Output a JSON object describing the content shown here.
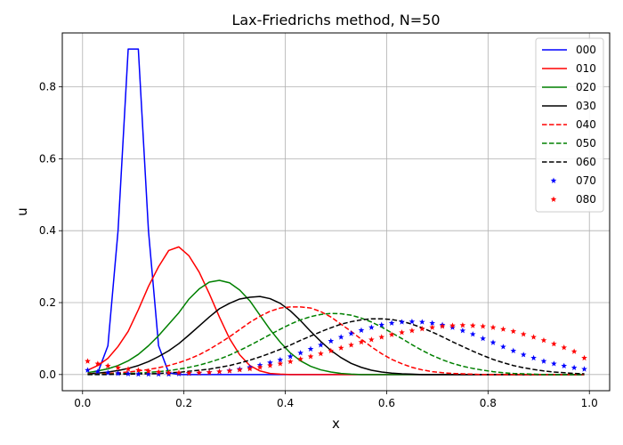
{
  "chart_data": {
    "type": "line",
    "title": "Lax-Friedrichs method, N=50",
    "xlabel": "x",
    "ylabel": "u",
    "xlim": [
      -0.04,
      1.04
    ],
    "ylim": [
      -0.045,
      0.95
    ],
    "x_ticks": [
      0.0,
      0.2,
      0.4,
      0.6,
      0.8,
      1.0
    ],
    "x_tick_labels": [
      "0.0",
      "0.2",
      "0.4",
      "0.6",
      "0.8",
      "1.0"
    ],
    "y_ticks": [
      0.0,
      0.2,
      0.4,
      0.6,
      0.8
    ],
    "y_tick_labels": [
      "0.0",
      "0.2",
      "0.4",
      "0.6",
      "0.8"
    ],
    "grid": true,
    "legend_position": "top-right",
    "x": [
      0.01,
      0.03,
      0.05,
      0.07,
      0.09,
      0.11,
      0.13,
      0.15,
      0.17,
      0.19,
      0.21,
      0.23,
      0.25,
      0.27,
      0.29,
      0.31,
      0.33,
      0.35,
      0.37,
      0.39,
      0.41,
      0.43,
      0.45,
      0.47,
      0.49,
      0.51,
      0.53,
      0.55,
      0.57,
      0.59,
      0.61,
      0.63,
      0.65,
      0.67,
      0.69,
      0.71,
      0.73,
      0.75,
      0.77,
      0.79,
      0.81,
      0.83,
      0.85,
      0.87,
      0.89,
      0.91,
      0.93,
      0.95,
      0.97,
      0.99
    ],
    "series": [
      {
        "name": "000",
        "color": "#0000ff",
        "style": "solid",
        "values": [
          0.0,
          0.005,
          0.08,
          0.4,
          0.905,
          0.905,
          0.4,
          0.08,
          0.005,
          0,
          0,
          0,
          0,
          0,
          0,
          0,
          0,
          0,
          0,
          0,
          0,
          0,
          0,
          0,
          0,
          0,
          0,
          0,
          0,
          0,
          0,
          0,
          0,
          0,
          0,
          0,
          0,
          0,
          0,
          0,
          0,
          0,
          0,
          0,
          0,
          0,
          0,
          0,
          0,
          0
        ]
      },
      {
        "name": "010",
        "color": "#ff0000",
        "style": "solid",
        "values": [
          0.012,
          0.025,
          0.045,
          0.078,
          0.12,
          0.18,
          0.245,
          0.3,
          0.345,
          0.355,
          0.33,
          0.285,
          0.225,
          0.16,
          0.1,
          0.055,
          0.025,
          0.01,
          0.003,
          0.001,
          0,
          0,
          0,
          0,
          0,
          0,
          0,
          0,
          0,
          0,
          0,
          0,
          0,
          0,
          0,
          0,
          0,
          0,
          0,
          0,
          0,
          0,
          0,
          0,
          0,
          0,
          0,
          0,
          0,
          0
        ]
      },
      {
        "name": "020",
        "color": "#008000",
        "style": "solid",
        "values": [
          0.005,
          0.01,
          0.016,
          0.025,
          0.038,
          0.056,
          0.08,
          0.108,
          0.14,
          0.172,
          0.21,
          0.238,
          0.257,
          0.262,
          0.255,
          0.235,
          0.205,
          0.165,
          0.125,
          0.09,
          0.06,
          0.038,
          0.023,
          0.013,
          0.007,
          0.003,
          0.001,
          0,
          0,
          0,
          0,
          0,
          0,
          0,
          0,
          0,
          0,
          0,
          0,
          0,
          0,
          0,
          0,
          0,
          0,
          0,
          0,
          0,
          0,
          0
        ]
      },
      {
        "name": "030",
        "color": "#000000",
        "style": "solid",
        "values": [
          0.002,
          0.004,
          0.007,
          0.011,
          0.017,
          0.025,
          0.036,
          0.05,
          0.066,
          0.086,
          0.11,
          0.135,
          0.16,
          0.183,
          0.198,
          0.21,
          0.215,
          0.217,
          0.211,
          0.198,
          0.177,
          0.15,
          0.12,
          0.092,
          0.067,
          0.047,
          0.031,
          0.02,
          0.012,
          0.007,
          0.004,
          0.002,
          0.001,
          0,
          0,
          0,
          0,
          0,
          0,
          0,
          0,
          0,
          0,
          0,
          0,
          0,
          0,
          0,
          0,
          0
        ]
      },
      {
        "name": "040",
        "color": "#ff0000",
        "style": "dashed",
        "values": [
          0.001,
          0.002,
          0.003,
          0.005,
          0.007,
          0.01,
          0.014,
          0.019,
          0.025,
          0.033,
          0.043,
          0.055,
          0.07,
          0.087,
          0.105,
          0.125,
          0.145,
          0.162,
          0.176,
          0.185,
          0.188,
          0.188,
          0.185,
          0.175,
          0.16,
          0.14,
          0.12,
          0.098,
          0.077,
          0.058,
          0.042,
          0.03,
          0.02,
          0.013,
          0.008,
          0.005,
          0.003,
          0.002,
          0.001,
          0,
          0,
          0,
          0,
          0,
          0,
          0,
          0,
          0,
          0,
          0
        ]
      },
      {
        "name": "050",
        "color": "#008000",
        "style": "dashed",
        "values": [
          0,
          0.001,
          0.001,
          0.002,
          0.003,
          0.004,
          0.006,
          0.008,
          0.011,
          0.015,
          0.02,
          0.026,
          0.034,
          0.043,
          0.054,
          0.067,
          0.081,
          0.096,
          0.111,
          0.126,
          0.14,
          0.152,
          0.161,
          0.167,
          0.17,
          0.169,
          0.165,
          0.157,
          0.146,
          0.132,
          0.116,
          0.1,
          0.083,
          0.067,
          0.053,
          0.041,
          0.031,
          0.023,
          0.017,
          0.012,
          0.008,
          0.005,
          0.003,
          0.002,
          0.001,
          0,
          0,
          0,
          0,
          0
        ]
      },
      {
        "name": "060",
        "color": "#000000",
        "style": "dashed",
        "values": [
          0,
          0,
          0,
          0.001,
          0.001,
          0.002,
          0.002,
          0.003,
          0.005,
          0.006,
          0.009,
          0.012,
          0.015,
          0.02,
          0.025,
          0.032,
          0.04,
          0.049,
          0.059,
          0.07,
          0.082,
          0.095,
          0.107,
          0.119,
          0.13,
          0.14,
          0.147,
          0.152,
          0.155,
          0.155,
          0.153,
          0.148,
          0.14,
          0.13,
          0.118,
          0.105,
          0.091,
          0.078,
          0.065,
          0.053,
          0.042,
          0.033,
          0.025,
          0.019,
          0.014,
          0.01,
          0.007,
          0.005,
          0.003,
          0.002
        ]
      },
      {
        "name": "070",
        "color": "#0000ff",
        "style": "star",
        "values": [
          0.012,
          0.008,
          0.005,
          0.003,
          0.002,
          0.001,
          0.001,
          0.001,
          0.001,
          0.002,
          0.003,
          0.004,
          0.006,
          0.008,
          0.011,
          0.015,
          0.02,
          0.026,
          0.033,
          0.041,
          0.05,
          0.06,
          0.071,
          0.082,
          0.093,
          0.104,
          0.114,
          0.123,
          0.131,
          0.138,
          0.143,
          0.146,
          0.147,
          0.146,
          0.143,
          0.138,
          0.131,
          0.122,
          0.112,
          0.1,
          0.089,
          0.077,
          0.066,
          0.055,
          0.046,
          0.037,
          0.03,
          0.024,
          0.019,
          0.015
        ]
      },
      {
        "name": "080",
        "color": "#ff0000",
        "style": "star",
        "values": [
          0.037,
          0.03,
          0.024,
          0.019,
          0.015,
          0.012,
          0.009,
          0.007,
          0.005,
          0.005,
          0.004,
          0.005,
          0.006,
          0.008,
          0.01,
          0.013,
          0.016,
          0.02,
          0.025,
          0.03,
          0.036,
          0.043,
          0.05,
          0.058,
          0.066,
          0.074,
          0.082,
          0.09,
          0.097,
          0.104,
          0.111,
          0.117,
          0.122,
          0.127,
          0.131,
          0.134,
          0.136,
          0.137,
          0.136,
          0.134,
          0.131,
          0.126,
          0.12,
          0.112,
          0.104,
          0.095,
          0.085,
          0.075,
          0.064,
          0.046
        ]
      }
    ]
  }
}
